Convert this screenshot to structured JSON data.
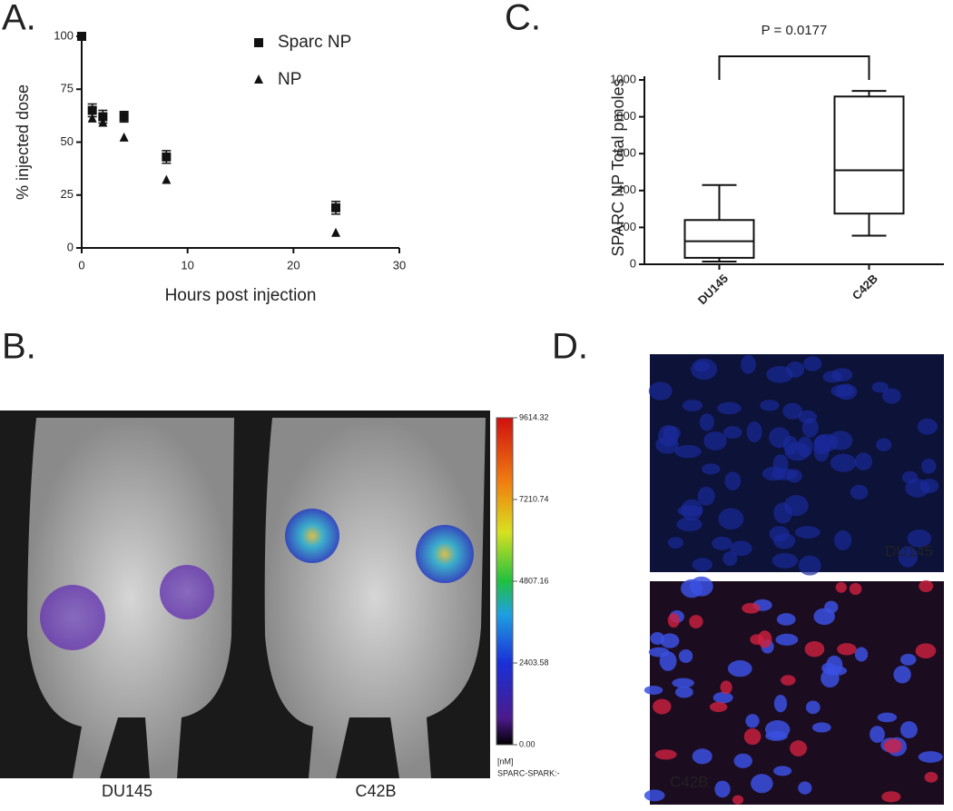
{
  "chart_data": [
    {
      "type": "scatter",
      "panel": "A.",
      "xlabel": "Hours post injection",
      "ylabel": "% injected dose",
      "xlim": [
        0,
        30
      ],
      "xticks": [
        0,
        10,
        20,
        30
      ],
      "ylim": [
        0,
        100
      ],
      "yticks": [
        0,
        25,
        50,
        75,
        100
      ],
      "series": [
        {
          "name": "Sparc NP",
          "marker": "square",
          "color": "#111111",
          "x": [
            0,
            1,
            2,
            4,
            8,
            24
          ],
          "values": [
            100,
            65,
            62,
            62,
            43,
            19
          ],
          "errors": [
            null,
            3,
            3,
            2.5,
            3,
            3
          ]
        },
        {
          "name": "NP",
          "marker": "triangle",
          "color": "#111111",
          "x": [
            1,
            2,
            4,
            8,
            24
          ],
          "values": [
            61,
            59,
            52,
            32,
            7
          ]
        }
      ]
    },
    {
      "type": "box",
      "panel": "C.",
      "ylabel": "SPARC NP Total pmoles",
      "annotation": "P = 0.0177",
      "categories": [
        "DU145",
        "C42B"
      ],
      "ylim": [
        0,
        1000
      ],
      "yticks": [
        0,
        200,
        400,
        600,
        800,
        1000
      ],
      "min": [
        15,
        155
      ],
      "q1": [
        35,
        275
      ],
      "median": [
        125,
        510
      ],
      "q3": [
        240,
        910
      ],
      "max": [
        430,
        940
      ]
    }
  ],
  "panel_b": {
    "panel": "B.",
    "labels": [
      "DU145",
      "C42B"
    ],
    "colorbar": {
      "lim": [
        0,
        9614.32
      ],
      "ticks": [
        {
          "value": 0,
          "label": "0.00"
        },
        2403.58,
        4807.16,
        7210.74,
        9614.32
      ],
      "unit": "[nM]",
      "probe": "SPARC-SPARK:-"
    }
  },
  "panel_d": {
    "panel": "D.",
    "labels": [
      "DU145",
      "C42B"
    ]
  }
}
